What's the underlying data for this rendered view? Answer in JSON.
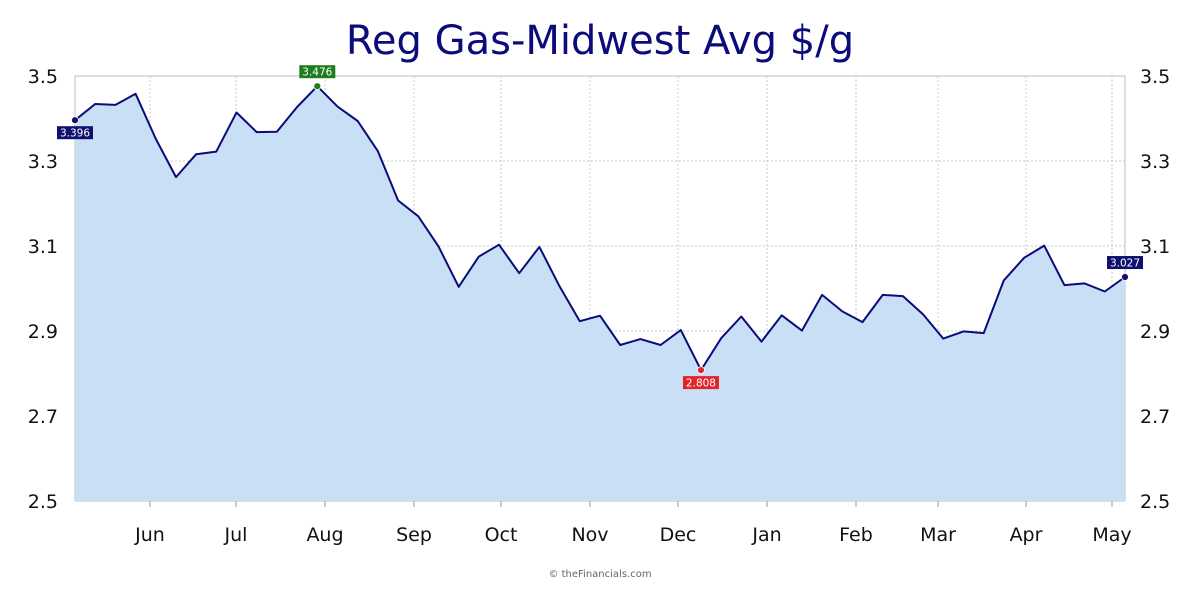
{
  "chart_data": {
    "type": "area",
    "title": "Reg Gas-Midwest Avg $/g",
    "ylim": [
      2.5,
      3.5
    ],
    "y_ticks": [
      "2.5",
      "2.7",
      "2.9",
      "3.1",
      "3.3",
      "3.5"
    ],
    "x_ticks": [
      "Jun",
      "Jul",
      "Aug",
      "Sep",
      "Oct",
      "Nov",
      "Dec",
      "Jan",
      "Feb",
      "Mar",
      "Apr",
      "May"
    ],
    "grid": true,
    "values": [
      3.396,
      3.434,
      3.432,
      3.458,
      3.352,
      3.262,
      3.316,
      3.322,
      3.414,
      3.368,
      3.369,
      3.427,
      3.476,
      3.428,
      3.394,
      3.323,
      3.207,
      3.17,
      3.099,
      3.004,
      3.075,
      3.103,
      3.036,
      3.098,
      3.005,
      2.923,
      2.936,
      2.867,
      2.881,
      2.867,
      2.902,
      2.808,
      2.883,
      2.934,
      2.875,
      2.937,
      2.901,
      2.985,
      2.946,
      2.921,
      2.985,
      2.982,
      2.939,
      2.882,
      2.899,
      2.895,
      3.019,
      3.072,
      3.101,
      3.008,
      3.012,
      2.993,
      3.027
    ],
    "markers": {
      "first": {
        "index": 0,
        "label": "3.396",
        "color": "#101070"
      },
      "max": {
        "index": 12,
        "label": "3.476",
        "color": "#1e7d1e"
      },
      "min": {
        "index": 31,
        "label": "2.808",
        "color": "#e0262a"
      },
      "last": {
        "index": 52,
        "label": "3.027",
        "color": "#101070"
      }
    },
    "colors": {
      "line": "#0b0b7a",
      "fill": "#c9dff6",
      "title": "#0b0b7a"
    }
  },
  "footer": {
    "credit": "© theFinancials.com"
  }
}
